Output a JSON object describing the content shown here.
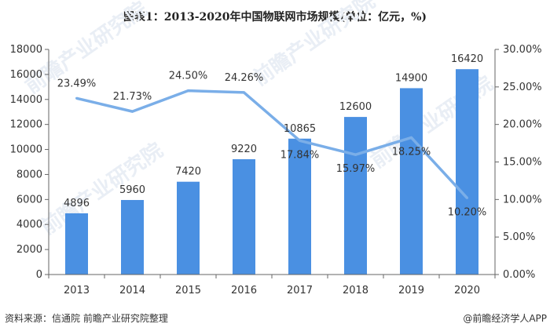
{
  "header": {
    "title": "图表1：2013-2020年中国物联网市场规模(单位：亿元，%)"
  },
  "footer": {
    "source": "资料来源：信通院 前瞻产业研究院整理",
    "brand": "@前瞻经济学人APP"
  },
  "watermark": {
    "text": "前瞻产业研究院"
  },
  "colors": {
    "bar": "#4a90e2",
    "line": "#7aaee8",
    "axis": "#666666"
  },
  "chart_data": {
    "type": "bar",
    "categories": [
      "2013",
      "2014",
      "2015",
      "2016",
      "2017",
      "2018",
      "2019",
      "2020"
    ],
    "series": [
      {
        "values": [
          4896,
          5960,
          7420,
          9220,
          10865,
          12600,
          14900,
          16420
        ],
        "axis": "left",
        "kind": "bar"
      },
      {
        "values": [
          23.49,
          21.73,
          24.5,
          24.26,
          17.84,
          15.97,
          18.25,
          10.2
        ],
        "axis": "right",
        "kind": "line"
      }
    ],
    "bar_labels": [
      "4896",
      "5960",
      "7420",
      "9220",
      "10865",
      "12600",
      "14900",
      "16420"
    ],
    "line_labels": [
      "23.49%",
      "21.73%",
      "24.50%",
      "24.26%",
      "17.84%",
      "15.97%",
      "18.25%",
      "10.20%"
    ],
    "y_left": {
      "min": 0,
      "max": 18000,
      "ticks": [
        "0",
        "2000",
        "4000",
        "6000",
        "8000",
        "10000",
        "12000",
        "14000",
        "16000",
        "18000"
      ]
    },
    "y_right": {
      "min": 0,
      "max": 30,
      "ticks": [
        "0.00%",
        "5.00%",
        "10.00%",
        "15.00%",
        "20.00%",
        "25.00%",
        "30.00%"
      ]
    },
    "grid": false,
    "legend": "none"
  }
}
